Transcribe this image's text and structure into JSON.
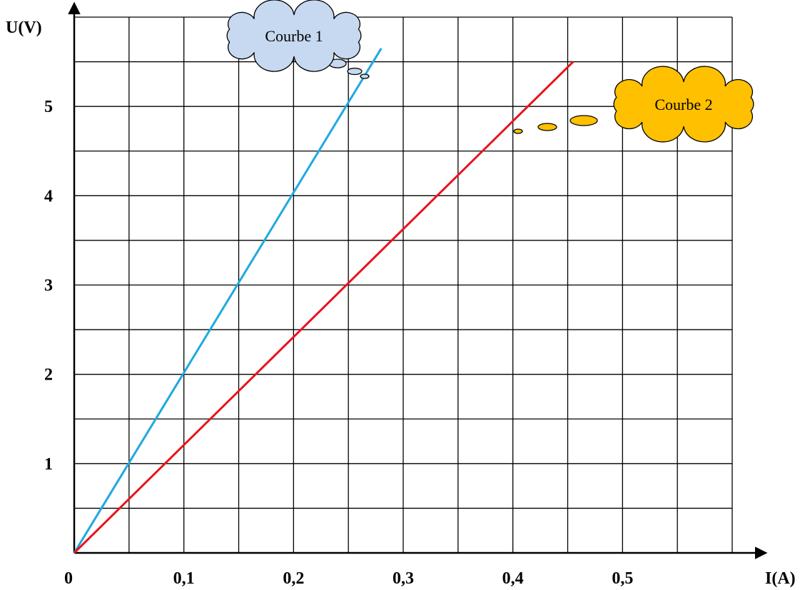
{
  "chart_data": {
    "type": "line",
    "xlabel": "I(A)",
    "ylabel": "U(V)",
    "x_ticks": [
      "0",
      "0,1",
      "0,2",
      "0,3",
      "0,4",
      "0,5"
    ],
    "x_tick_values": [
      0,
      0.1,
      0.2,
      0.3,
      0.4,
      0.5
    ],
    "y_ticks": [
      "1",
      "2",
      "3",
      "4",
      "5"
    ],
    "y_tick_values": [
      1,
      2,
      3,
      4,
      5
    ],
    "xlim": [
      0,
      0.6
    ],
    "ylim": [
      0,
      6
    ],
    "grid": true,
    "grid_x_step": 0.05,
    "grid_y_step": 0.5,
    "series": [
      {
        "name": "Courbe 1",
        "color": "#1fa9e1",
        "x": [
          0,
          0.28
        ],
        "y": [
          0,
          5.65
        ]
      },
      {
        "name": "Courbe 2",
        "color": "#e8141b",
        "x": [
          0,
          0.455
        ],
        "y": [
          0,
          5.5
        ]
      }
    ],
    "annotations": [
      {
        "text": "Courbe 1",
        "series": 0,
        "style": "thought-cloud",
        "fill": "#c6d9f0"
      },
      {
        "text": "Courbe 2",
        "series": 1,
        "style": "thought-cloud",
        "fill": "#ffc000"
      }
    ]
  }
}
